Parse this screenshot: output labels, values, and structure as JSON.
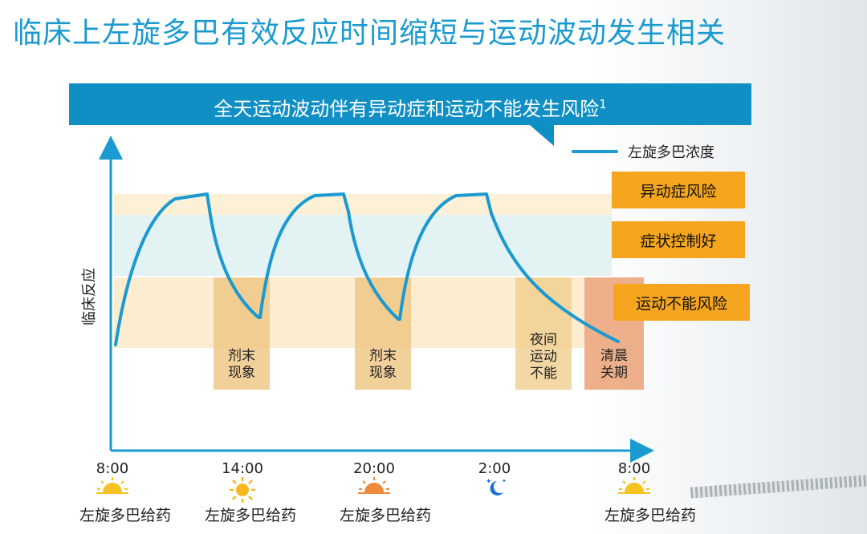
{
  "title": "临床上左旋多巴有效反应时间缩短与运动波动发生相关",
  "banner": {
    "text": "全天运动波动伴有异动症和运动不能发生风险",
    "sup": "1"
  },
  "legend": {
    "label": "左旋多巴浓度",
    "color": "#1a9ad0"
  },
  "risk_boxes": [
    "异动症风险",
    "症状控制好",
    "运动不能风险"
  ],
  "ylabel": "临床反应",
  "columns": [
    "剂末\n现象",
    "剂末\n现象",
    "夜间\n运动\n不能",
    "清晨\n关期"
  ],
  "xticks": [
    "8:00",
    "14:00",
    "20:00",
    "2:00",
    "8:00"
  ],
  "doses": [
    "左旋多巴给药",
    "左旋多巴给药",
    "左旋多巴给药",
    "左旋多巴给药"
  ],
  "icons": [
    "sun-icon",
    "sun-icon",
    "sun-icon",
    "moon-stars-icon",
    "sun-icon"
  ],
  "colors": {
    "accent": "#1a9ad0",
    "banner": "#0f8fc4",
    "risk": "#f5a51e"
  }
}
